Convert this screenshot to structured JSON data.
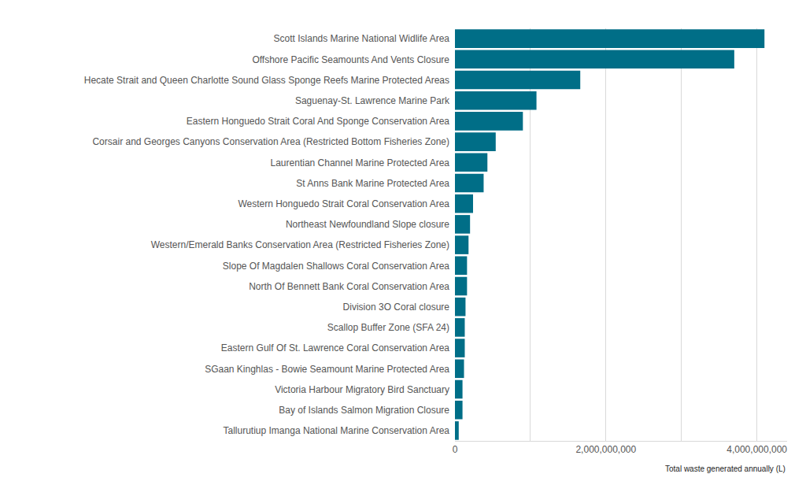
{
  "chart_data": {
    "type": "bar",
    "orientation": "horizontal",
    "x_label": "Total waste generated annually (L)",
    "categories": [
      "Scott Islands Marine National Widlife Area",
      "Offshore Pacific Seamounts And Vents Closure",
      "Hecate Strait and Queen Charlotte Sound Glass Sponge Reefs Marine Protected Areas",
      "Saguenay-St. Lawrence Marine Park",
      "Eastern Honguedo Strait Coral And Sponge Conservation Area",
      "Corsair and Georges Canyons Conservation Area (Restricted Bottom Fisheries Zone)",
      "Laurentian Channel Marine Protected Area",
      "St Anns Bank Marine Protected Area",
      "Western Honguedo Strait Coral Conservation Area",
      "Northeast Newfoundland Slope closure",
      "Western/Emerald Banks Conservation Area (Restricted Fisheries Zone)",
      "Slope Of Magdalen Shallows Coral Conservation Area",
      "North Of Bennett Bank Coral Conservation Area",
      "Division 3O Coral closure",
      "Scallop Buffer Zone (SFA 24)",
      "Eastern Gulf Of St. Lawrence Coral Conservation Area",
      "SGaan Kinghlas - Bowie Seamount Marine Protected Area",
      "Victoria Harbour Migratory Bird Sanctuary",
      "Bay of Islands Salmon Migration Closure",
      "Tallurutiup Imanga National Marine Conservation Area"
    ],
    "values": [
      4100000000,
      3700000000,
      1660000000,
      1080000000,
      900000000,
      540000000,
      430000000,
      380000000,
      240000000,
      200000000,
      180000000,
      160000000,
      160000000,
      140000000,
      130000000,
      130000000,
      120000000,
      100000000,
      100000000,
      50000000
    ],
    "color": "#006e87",
    "xlim": [
      0,
      4400000000
    ],
    "xticks": [
      0,
      {
        "value": 2000000000,
        "label": "2,000,000,000"
      },
      {
        "value": 4000000000,
        "label": "4,000,000,000"
      }
    ],
    "grid": true
  }
}
